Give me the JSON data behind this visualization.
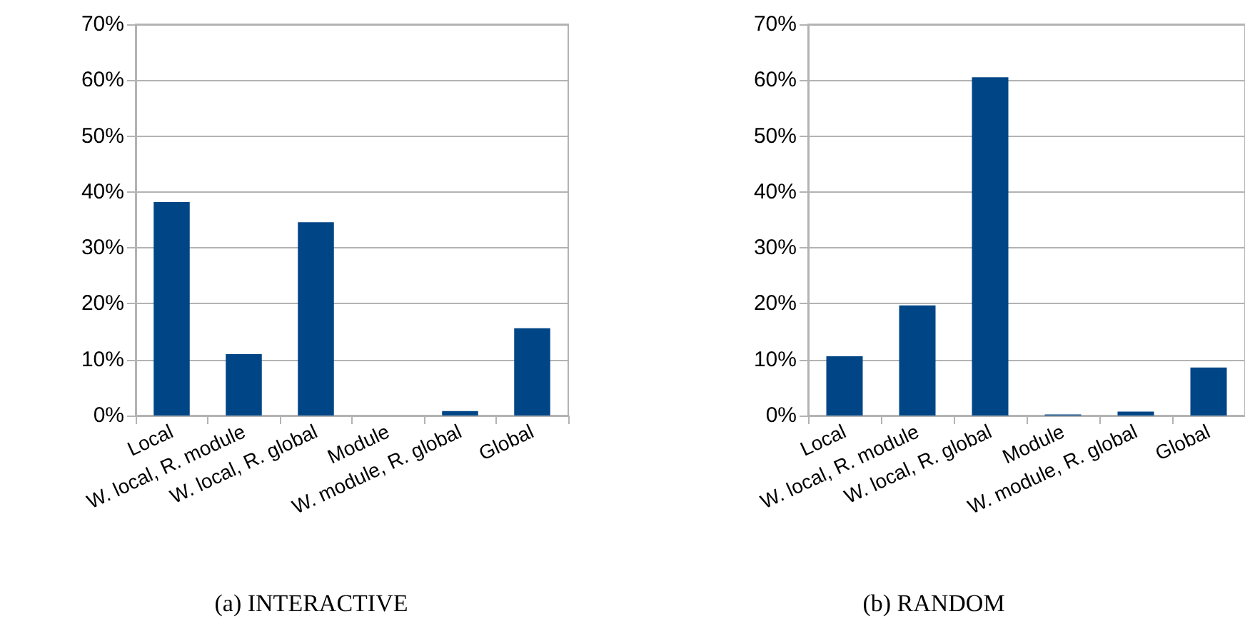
{
  "chart_data": [
    {
      "type": "bar",
      "title": "(a) INTERACTIVE",
      "categories": [
        "Local",
        "W. local, R. module",
        "W. local, R. global",
        "Module",
        "W. module, R. global",
        "Global"
      ],
      "values": [
        38.2,
        11.0,
        34.6,
        0,
        0.8,
        15.6
      ],
      "color": "#004586",
      "ylim": [
        0,
        70
      ],
      "yticks": [
        {
          "value": 0,
          "label": "0%"
        },
        {
          "value": 10,
          "label": "10%"
        },
        {
          "value": 20,
          "label": "20%"
        },
        {
          "value": 30,
          "label": "30%"
        },
        {
          "value": 40,
          "label": "40%"
        },
        {
          "value": 50,
          "label": "50%"
        },
        {
          "value": 60,
          "label": "60%"
        },
        {
          "value": 70,
          "label": "70%"
        }
      ],
      "grid": "y"
    },
    {
      "type": "bar",
      "title": "(b) RANDOM",
      "categories": [
        "Local",
        "W. local, R. module",
        "W. local, R. global",
        "Module",
        "W. module, R. global",
        "Global"
      ],
      "values": [
        10.6,
        19.7,
        60.5,
        0.2,
        0.7,
        8.6
      ],
      "color": "#004586",
      "ylim": [
        0,
        70
      ],
      "yticks": [
        {
          "value": 0,
          "label": "0%"
        },
        {
          "value": 10,
          "label": "10%"
        },
        {
          "value": 20,
          "label": "20%"
        },
        {
          "value": 30,
          "label": "30%"
        },
        {
          "value": 40,
          "label": "40%"
        },
        {
          "value": 50,
          "label": "50%"
        },
        {
          "value": 60,
          "label": "60%"
        },
        {
          "value": 70,
          "label": "70%"
        }
      ],
      "grid": "y"
    }
  ]
}
